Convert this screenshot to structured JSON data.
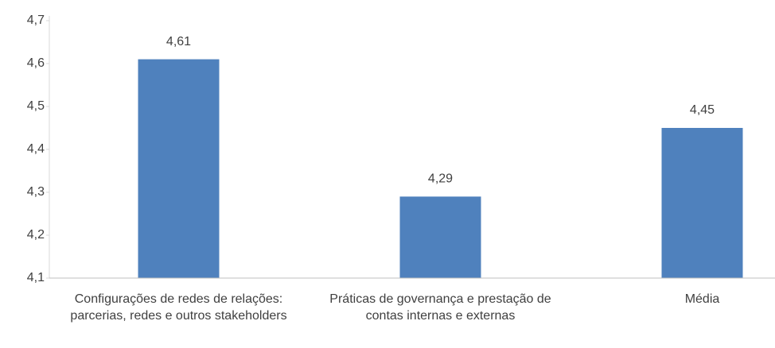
{
  "chart_data": {
    "type": "bar",
    "categories": [
      "Configurações de redes de relações: parcerias, redes e outros stakeholders",
      "Práticas de governança e prestação de contas internas e externas",
      "Média"
    ],
    "values": [
      4.61,
      4.29,
      4.45
    ],
    "value_labels": [
      "4,61",
      "4,29",
      "4,45"
    ],
    "color": "#4f81bd",
    "ylim": [
      4.1,
      4.7
    ],
    "yticks": [
      {
        "value": 4.1,
        "label": "4,1"
      },
      {
        "value": 4.2,
        "label": "4,2"
      },
      {
        "value": 4.3,
        "label": "4,3"
      },
      {
        "value": 4.4,
        "label": "4,4"
      },
      {
        "value": 4.5,
        "label": "4,5"
      },
      {
        "value": 4.6,
        "label": "4,6"
      },
      {
        "value": 4.7,
        "label": "4,7"
      }
    ],
    "grid": false
  }
}
